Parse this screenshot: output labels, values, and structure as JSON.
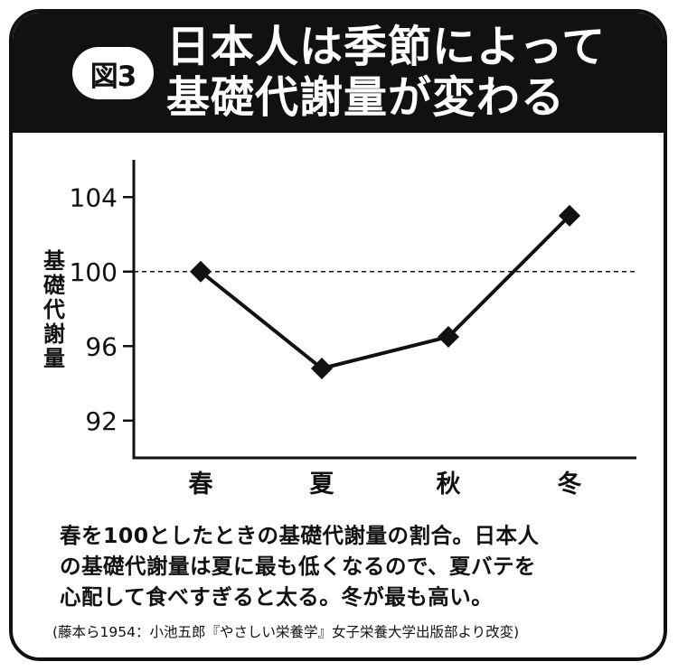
{
  "header": {
    "badge": "図3",
    "title_lines": [
      "日本人は季節によって",
      "基礎代謝量が変わる"
    ]
  },
  "chart_data": {
    "type": "line",
    "categories": [
      "春",
      "夏",
      "秋",
      "冬"
    ],
    "values": [
      100,
      94.8,
      96.5,
      103
    ],
    "ylabel": "基礎代謝量",
    "yticks": [
      "92",
      "96",
      "100",
      "104"
    ],
    "ylim": [
      90,
      106
    ],
    "reference_line": 100,
    "marker": "diamond",
    "grid": false,
    "colors": {
      "line": "#111111",
      "reference": "#111111"
    }
  },
  "description_lines": [
    "春を100としたときの基礎代謝量の割合。日本人",
    "の基礎代謝量は夏に最も低くなるので、夏バテを",
    "心配して食べすぎると太る。冬が最も高い。"
  ],
  "source": "(藤本ら1954：小池五郎『やさしい栄養学』女子栄養大学出版部より改変)"
}
